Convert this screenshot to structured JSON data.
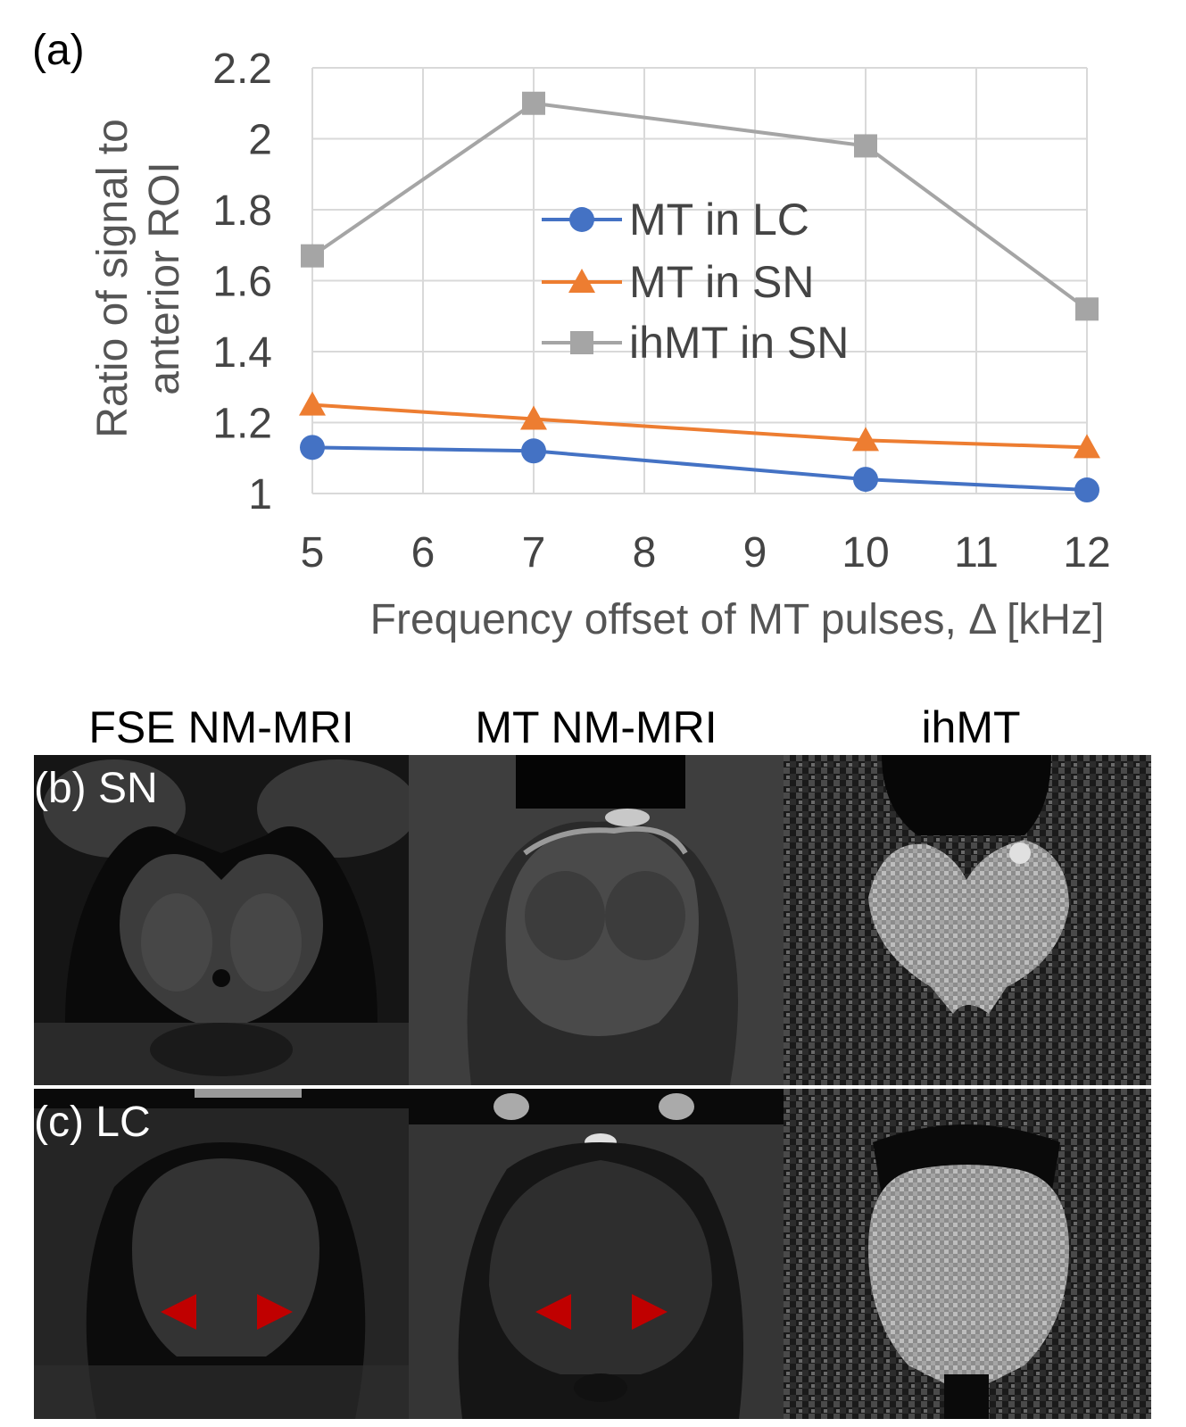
{
  "panel_a_label": "(a)",
  "chart_data": {
    "type": "line",
    "title": "",
    "xlabel": "Frequency offset of MT pulses, Δ [kHz]",
    "ylabel_line1": "Ratio of signal to",
    "ylabel_line2": "anterior ROI",
    "xlim": [
      5,
      12
    ],
    "ylim": [
      1,
      2.2
    ],
    "x_ticks": [
      "5",
      "6",
      "7",
      "8",
      "9",
      "10",
      "11",
      "12"
    ],
    "y_ticks": [
      "1",
      "1.2",
      "1.4",
      "1.6",
      "1.8",
      "2",
      "2.2"
    ],
    "grid": true,
    "legend_position": "center",
    "x": [
      5,
      7,
      10,
      12
    ],
    "series": [
      {
        "name": "MT in LC",
        "values": [
          1.13,
          1.12,
          1.04,
          1.01
        ],
        "color": "#4472C4",
        "marker": "circle"
      },
      {
        "name": "MT in SN",
        "values": [
          1.25,
          1.21,
          1.15,
          1.13
        ],
        "color": "#ED7D31",
        "marker": "triangle"
      },
      {
        "name": "ihMT in SN",
        "values": [
          1.67,
          2.1,
          1.98,
          1.52
        ],
        "color": "#A5A5A5",
        "marker": "square"
      }
    ]
  },
  "columns": [
    "FSE NM-MRI",
    "MT NM-MRI",
    "ihMT"
  ],
  "rows": [
    {
      "label": "(b) SN"
    },
    {
      "label": "(c) LC"
    }
  ],
  "arrow_color": "#C00000"
}
